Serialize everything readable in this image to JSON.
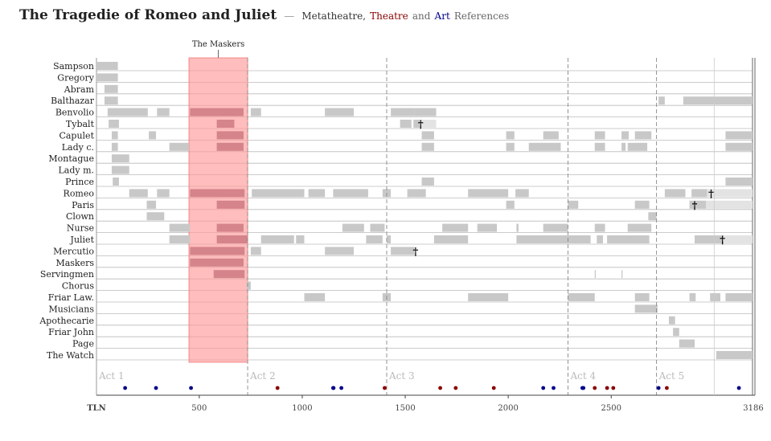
{
  "title": {
    "main": "The Tragedie of Romeo and Juliet",
    "separator": "—",
    "metatheatre": "Metatheatre,",
    "theatre": "Theatre",
    "and": "and",
    "art": "Art",
    "references": "References",
    "theatre_color": "#8b0000",
    "art_color": "#00008b"
  },
  "chart_data": {
    "type": "timeline",
    "xlim": [
      1,
      3186
    ],
    "x_start_label": "TLN",
    "x_end_label": "3186",
    "ticks": [
      500,
      1000,
      1500,
      2000,
      2500
    ],
    "minor_tick": 3000,
    "grid": true,
    "acts": [
      {
        "label": "Act 1",
        "tln": 1
      },
      {
        "label": "Act 2",
        "tln": 735
      },
      {
        "label": "Act 3",
        "tln": 1410
      },
      {
        "label": "Act 4",
        "tln": 2290
      },
      {
        "label": "Act 5",
        "tln": 2720
      }
    ],
    "highlight": {
      "label": "The Maskers",
      "start": 450,
      "end": 735,
      "color": "#ff9999"
    },
    "characters": [
      {
        "name": "Sampson",
        "segments": [
          [
            1,
            105
          ]
        ],
        "faded": [],
        "death": null
      },
      {
        "name": "Gregory",
        "segments": [
          [
            1,
            105
          ]
        ],
        "faded": [],
        "death": null
      },
      {
        "name": "Abram",
        "segments": [
          [
            40,
            105
          ]
        ],
        "faded": [],
        "death": null
      },
      {
        "name": "Balthazar",
        "segments": [
          [
            40,
            105
          ],
          [
            2730,
            2760
          ],
          [
            2850,
            3186
          ]
        ],
        "faded": [],
        "death": null
      },
      {
        "name": "Benvolio",
        "segments": [
          [
            55,
            250
          ],
          [
            295,
            355
          ],
          [
            455,
            715
          ],
          [
            750,
            800
          ],
          [
            1110,
            1250
          ],
          [
            1430,
            1545
          ],
          [
            1545,
            1650
          ]
        ],
        "faded": [],
        "death": null
      },
      {
        "name": "Tybalt",
        "segments": [
          [
            60,
            110
          ],
          [
            585,
            670
          ],
          [
            1475,
            1530
          ],
          [
            1540,
            1570
          ]
        ],
        "faded": [
          [
            1570,
            1650
          ]
        ],
        "death": 1575
      },
      {
        "name": "Capulet",
        "segments": [
          [
            75,
            105
          ],
          [
            255,
            290
          ],
          [
            585,
            715
          ],
          [
            1580,
            1640
          ],
          [
            1990,
            2030
          ],
          [
            2170,
            2245
          ],
          [
            2420,
            2470
          ],
          [
            2550,
            2585
          ],
          [
            2615,
            2695
          ],
          [
            3055,
            3186
          ]
        ],
        "faded": [],
        "death": null
      },
      {
        "name": "Lady c.",
        "segments": [
          [
            75,
            105
          ],
          [
            355,
            450
          ],
          [
            585,
            715
          ],
          [
            1580,
            1640
          ],
          [
            1990,
            2030
          ],
          [
            2100,
            2255
          ],
          [
            2420,
            2470
          ],
          [
            2550,
            2570
          ],
          [
            2580,
            2675
          ],
          [
            3055,
            3186
          ]
        ],
        "faded": [],
        "death": null
      },
      {
        "name": "Montague",
        "segments": [
          [
            75,
            160
          ]
        ],
        "faded": [],
        "death": null
      },
      {
        "name": "Lady m.",
        "segments": [
          [
            75,
            160
          ]
        ],
        "faded": [],
        "death": null
      },
      {
        "name": "Prince",
        "segments": [
          [
            80,
            110
          ],
          [
            1580,
            1640
          ],
          [
            3055,
            3186
          ]
        ],
        "faded": [],
        "death": null
      },
      {
        "name": "Romeo",
        "segments": [
          [
            160,
            250
          ],
          [
            295,
            355
          ],
          [
            455,
            720
          ],
          [
            755,
            1010
          ],
          [
            1030,
            1110
          ],
          [
            1150,
            1320
          ],
          [
            1390,
            1430
          ],
          [
            1510,
            1600
          ],
          [
            1805,
            2000
          ],
          [
            2035,
            2100
          ],
          [
            2760,
            2860
          ],
          [
            2890,
            2965
          ]
        ],
        "faded": [
          [
            2965,
            3186
          ]
        ],
        "death": 2985
      },
      {
        "name": "Paris",
        "segments": [
          [
            245,
            290
          ],
          [
            585,
            720
          ],
          [
            1990,
            2030
          ],
          [
            2290,
            2340
          ],
          [
            2615,
            2685
          ],
          [
            2880,
            2960
          ]
        ],
        "faded": [
          [
            2960,
            3186
          ]
        ],
        "death": 2905
      },
      {
        "name": "Clown",
        "segments": [
          [
            245,
            330
          ],
          [
            2680,
            2720
          ]
        ],
        "faded": [],
        "death": null
      },
      {
        "name": "Nurse",
        "segments": [
          [
            355,
            455
          ],
          [
            585,
            715
          ],
          [
            1195,
            1300
          ],
          [
            1330,
            1400
          ],
          [
            1680,
            1805
          ],
          [
            1850,
            1945
          ],
          [
            2040,
            2050
          ],
          [
            2170,
            2290
          ],
          [
            2420,
            2470
          ],
          [
            2580,
            2695
          ]
        ],
        "faded": [],
        "death": null
      },
      {
        "name": "Juliet",
        "segments": [
          [
            355,
            455
          ],
          [
            585,
            735
          ],
          [
            800,
            960
          ],
          [
            970,
            1010
          ],
          [
            1310,
            1390
          ],
          [
            1410,
            1430
          ],
          [
            1640,
            1805
          ],
          [
            2040,
            2290
          ],
          [
            2290,
            2400
          ],
          [
            2430,
            2460
          ],
          [
            2480,
            2685
          ],
          [
            2905,
            3045
          ]
        ],
        "faded": [
          [
            3045,
            3186
          ]
        ],
        "death": 3040
      },
      {
        "name": "Mercutio",
        "segments": [
          [
            455,
            720
          ],
          [
            750,
            800
          ],
          [
            1110,
            1250
          ],
          [
            1430,
            1545
          ]
        ],
        "faded": [],
        "death": 1550
      },
      {
        "name": "Maskers",
        "segments": [
          [
            455,
            715
          ]
        ],
        "faded": [],
        "death": null
      },
      {
        "name": "Servingmen",
        "segments": [
          [
            570,
            720
          ],
          [
            2420,
            2425
          ],
          [
            2550,
            2555
          ]
        ],
        "faded": [],
        "death": null
      },
      {
        "name": "Chorus",
        "segments": [
          [
            730,
            750
          ]
        ],
        "faded": [],
        "death": null
      },
      {
        "name": "Friar Law.",
        "segments": [
          [
            1010,
            1110
          ],
          [
            1390,
            1430
          ],
          [
            1805,
            2000
          ],
          [
            2290,
            2420
          ],
          [
            2615,
            2685
          ],
          [
            2880,
            2910
          ],
          [
            2980,
            3030
          ],
          [
            3055,
            3186
          ]
        ],
        "faded": [],
        "death": null
      },
      {
        "name": "Musicians",
        "segments": [
          [
            2615,
            2725
          ]
        ],
        "faded": [],
        "death": null
      },
      {
        "name": "Apothecarie",
        "segments": [
          [
            2780,
            2810
          ]
        ],
        "faded": [],
        "death": null
      },
      {
        "name": "Friar John",
        "segments": [
          [
            2800,
            2830
          ]
        ],
        "faded": [],
        "death": null
      },
      {
        "name": "Page",
        "segments": [
          [
            2830,
            2905
          ]
        ],
        "faded": [],
        "death": null
      },
      {
        "name": "The Watch",
        "segments": [
          [
            3010,
            3186
          ]
        ],
        "faded": [],
        "death": null
      }
    ],
    "references": [
      {
        "tln": 140,
        "kind": "art"
      },
      {
        "tln": 290,
        "kind": "art"
      },
      {
        "tln": 460,
        "kind": "art"
      },
      {
        "tln": 880,
        "kind": "theatre"
      },
      {
        "tln": 1150,
        "kind": "art"
      },
      {
        "tln": 1152,
        "kind": "art"
      },
      {
        "tln": 1190,
        "kind": "art"
      },
      {
        "tln": 1400,
        "kind": "theatre"
      },
      {
        "tln": 1670,
        "kind": "theatre"
      },
      {
        "tln": 1745,
        "kind": "theatre"
      },
      {
        "tln": 1930,
        "kind": "theatre"
      },
      {
        "tln": 2170,
        "kind": "art"
      },
      {
        "tln": 2220,
        "kind": "art"
      },
      {
        "tln": 2360,
        "kind": "art"
      },
      {
        "tln": 2365,
        "kind": "art"
      },
      {
        "tln": 2420,
        "kind": "theatre"
      },
      {
        "tln": 2480,
        "kind": "theatre"
      },
      {
        "tln": 2510,
        "kind": "theatre"
      },
      {
        "tln": 2730,
        "kind": "art"
      },
      {
        "tln": 2770,
        "kind": "theatre"
      },
      {
        "tln": 3120,
        "kind": "art"
      }
    ],
    "colors": {
      "bar": "#c8c8c8",
      "bar_faded": "#e3e3e3",
      "bar_in_highlight": "#d4848a",
      "gridline": "#bbbbbb",
      "act_line": "#888888",
      "theatre_dot": "#8b0000",
      "art_dot": "#00008b"
    }
  }
}
